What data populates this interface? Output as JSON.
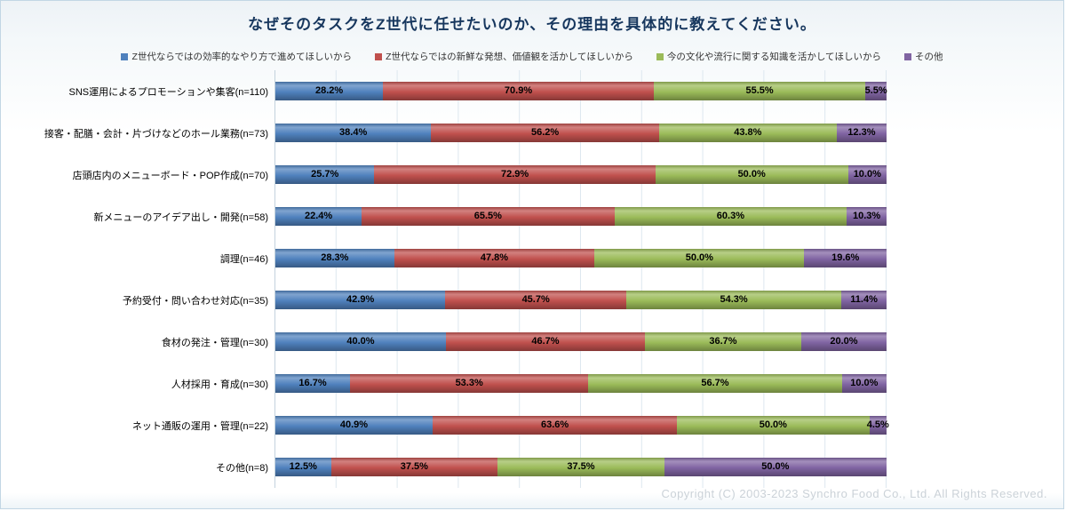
{
  "frame": {
    "title": "なぜそのタスクをZ世代に任せたいのか、その理由を具体的に教えてください。",
    "copyright": "Copyright (C) 2003-2023  Synchro Food Co., Ltd. All Rights Reserved."
  },
  "chart_data": {
    "type": "bar",
    "subtype": "horizontal-100%-stacked",
    "title": "なぜそのタスクをZ世代に任せたいのか、その理由を具体的に教えてください。",
    "legend_position": "top",
    "grid": true,
    "value_label_format": "0.0%",
    "categories": [
      "SNS運用によるプロモーションや集客(n=110)",
      "接客・配膳・会計・片づけなどのホール業務(n=73)",
      "店頭店内のメニューボード・POP作成(n=70)",
      "新メニューのアイデア出し・開発(n=58)",
      "調理(n=46)",
      "予約受付・問い合わせ対応(n=35)",
      "食材の発注・管理(n=30)",
      "人材採用・育成(n=30)",
      "ネット通販の運用・管理(n=22)",
      "その他(n=8)"
    ],
    "series": [
      {
        "name": "Z世代ならではの効率的なやり方で進めてほしいから",
        "color": "#4F81BD",
        "values": [
          28.2,
          38.4,
          25.7,
          22.4,
          28.3,
          42.9,
          40.0,
          16.7,
          40.9,
          12.5
        ]
      },
      {
        "name": "Z世代ならではの新鮮な発想、価値観を活かしてほしいから",
        "color": "#C0504D",
        "values": [
          70.9,
          56.2,
          72.9,
          65.5,
          47.8,
          45.7,
          46.7,
          53.3,
          63.6,
          37.5
        ]
      },
      {
        "name": "今の文化や流行に関する知識を活かしてほしいから",
        "color": "#9BBB59",
        "values": [
          55.5,
          43.8,
          50.0,
          60.3,
          50.0,
          54.3,
          36.7,
          56.7,
          50.0,
          37.5
        ]
      },
      {
        "name": "その他",
        "color": "#8064A2",
        "values": [
          5.5,
          12.3,
          10.0,
          10.3,
          19.6,
          11.4,
          20.0,
          10.0,
          4.5,
          50.0
        ]
      }
    ]
  }
}
